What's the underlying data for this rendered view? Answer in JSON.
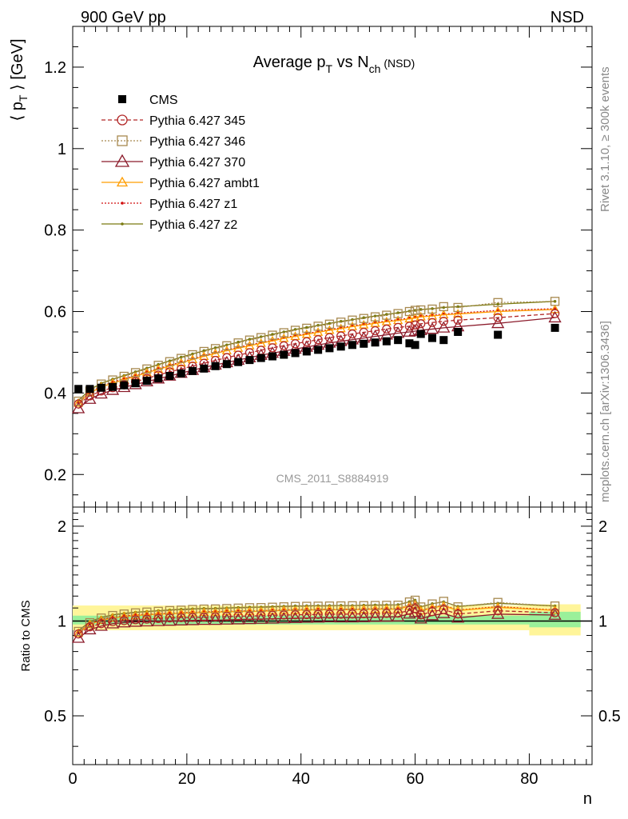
{
  "header": {
    "left": "900 GeV pp",
    "right": "NSD"
  },
  "side_labels": {
    "rivet": "Rivet 3.1.10, ≥ 300k events",
    "mcplots": "mcplots.cern.ch [arXiv:1306.3436]"
  },
  "title": {
    "main": "Average p",
    "sub1": "T",
    "mid": " vs N",
    "sub2": "ch",
    "tail": " (NSD)"
  },
  "watermark": "CMS_2011_S8884919",
  "ylabel": {
    "open": "⟨ p",
    "sub": "T",
    "close": " ⟩ [GeV]"
  },
  "ratio_ylabel": "Ratio to CMS",
  "xlabel": "n",
  "colors": {
    "cms": "#000000",
    "p345": "#b22727",
    "p346": "#a7894f",
    "p370": "#8b1a2a",
    "ambt1": "#ff9d00",
    "z1": "#d21010",
    "z2": "#7a7a10",
    "band_inner": "#9af09a",
    "band_outer": "#fff59a"
  },
  "chart_data": [
    {
      "type": "scatter",
      "panel": "main",
      "xlim": [
        0,
        91
      ],
      "ylim": [
        0.12,
        1.3
      ],
      "yticks": [
        0.2,
        0.4,
        0.6,
        0.8,
        1,
        1.2
      ],
      "ytick_labels": [
        "0.2",
        "0.4",
        "0.6",
        "0.8",
        "1",
        "1.2"
      ],
      "series": [
        {
          "name": "CMS",
          "key": "cms",
          "style": "cms",
          "x": [
            1,
            3,
            5,
            7,
            9,
            11,
            13,
            15,
            17,
            19,
            21,
            23,
            25,
            27,
            29,
            31,
            33,
            35,
            37,
            39,
            41,
            43,
            45,
            47,
            49,
            51,
            53,
            55,
            57,
            59,
            60,
            61,
            63,
            65,
            67.5,
            74.5,
            84.5
          ],
          "y": [
            0.41,
            0.41,
            0.413,
            0.415,
            0.419,
            0.424,
            0.43,
            0.436,
            0.442,
            0.448,
            0.454,
            0.46,
            0.466,
            0.471,
            0.476,
            0.481,
            0.486,
            0.49,
            0.494,
            0.498,
            0.502,
            0.506,
            0.51,
            0.514,
            0.518,
            0.521,
            0.524,
            0.527,
            0.53,
            0.522,
            0.518,
            0.545,
            0.535,
            0.53,
            0.55,
            0.543,
            0.56
          ]
        },
        {
          "name": "Pythia 6.427 345",
          "key": "p345",
          "style": "circle-dash",
          "x": [
            1,
            3,
            5,
            7,
            9,
            11,
            13,
            15,
            17,
            19,
            21,
            23,
            25,
            27,
            29,
            31,
            33,
            35,
            37,
            39,
            41,
            43,
            45,
            47,
            49,
            51,
            53,
            55,
            57,
            59,
            60,
            61,
            63,
            65,
            67.5,
            74.5,
            84.5
          ],
          "y": [
            0.373,
            0.393,
            0.405,
            0.413,
            0.42,
            0.428,
            0.436,
            0.444,
            0.452,
            0.459,
            0.466,
            0.473,
            0.48,
            0.487,
            0.493,
            0.499,
            0.505,
            0.511,
            0.516,
            0.521,
            0.526,
            0.531,
            0.536,
            0.54,
            0.545,
            0.549,
            0.553,
            0.557,
            0.561,
            0.564,
            0.567,
            0.57,
            0.573,
            0.576,
            0.579,
            0.585,
            0.595
          ]
        },
        {
          "name": "Pythia 6.427 346",
          "key": "p346",
          "style": "square-dot",
          "x": [
            1,
            3,
            5,
            7,
            9,
            11,
            13,
            15,
            17,
            19,
            21,
            23,
            25,
            27,
            29,
            31,
            33,
            35,
            37,
            39,
            41,
            43,
            45,
            47,
            49,
            51,
            53,
            55,
            57,
            59,
            60,
            61,
            63,
            65,
            67.5,
            74.5,
            84.5
          ],
          "y": [
            0.38,
            0.405,
            0.422,
            0.432,
            0.441,
            0.45,
            0.459,
            0.468,
            0.477,
            0.485,
            0.494,
            0.502,
            0.509,
            0.516,
            0.523,
            0.53,
            0.536,
            0.542,
            0.548,
            0.554,
            0.559,
            0.564,
            0.569,
            0.574,
            0.579,
            0.583,
            0.587,
            0.591,
            0.595,
            0.6,
            0.603,
            0.604,
            0.606,
            0.612,
            0.61,
            0.622,
            0.625
          ]
        },
        {
          "name": "Pythia 6.427 370",
          "key": "p370",
          "style": "triangle-solid",
          "x": [
            1,
            3,
            5,
            7,
            9,
            11,
            13,
            15,
            17,
            19,
            21,
            23,
            25,
            27,
            29,
            31,
            33,
            35,
            37,
            39,
            41,
            43,
            45,
            47,
            49,
            51,
            53,
            55,
            57,
            59,
            60,
            61,
            63,
            65,
            67.5,
            74.5,
            84.5
          ],
          "y": [
            0.362,
            0.385,
            0.398,
            0.407,
            0.414,
            0.421,
            0.428,
            0.435,
            0.442,
            0.449,
            0.456,
            0.463,
            0.469,
            0.475,
            0.481,
            0.487,
            0.493,
            0.498,
            0.503,
            0.508,
            0.513,
            0.518,
            0.523,
            0.527,
            0.531,
            0.535,
            0.539,
            0.543,
            0.547,
            0.55,
            0.552,
            0.554,
            0.557,
            0.56,
            0.563,
            0.571,
            0.585
          ]
        },
        {
          "name": "Pythia 6.427 ambt1",
          "key": "ambt1",
          "style": "triangle-small",
          "x": [
            1,
            3,
            5,
            7,
            9,
            11,
            13,
            15,
            17,
            19,
            21,
            23,
            25,
            27,
            29,
            31,
            33,
            35,
            37,
            39,
            41,
            43,
            45,
            47,
            49,
            51,
            53,
            55,
            57,
            59,
            60,
            61,
            63,
            65,
            67.5,
            74.5,
            84.5
          ],
          "y": [
            0.375,
            0.4,
            0.415,
            0.424,
            0.433,
            0.441,
            0.45,
            0.458,
            0.466,
            0.474,
            0.482,
            0.49,
            0.497,
            0.504,
            0.51,
            0.516,
            0.522,
            0.528,
            0.534,
            0.539,
            0.544,
            0.549,
            0.554,
            0.558,
            0.563,
            0.567,
            0.571,
            0.575,
            0.578,
            0.582,
            0.584,
            0.587,
            0.589,
            0.592,
            0.594,
            0.6,
            0.605
          ]
        },
        {
          "name": "Pythia 6.427 z1",
          "key": "z1",
          "style": "dot-dotted",
          "x": [
            1,
            3,
            5,
            7,
            9,
            11,
            13,
            15,
            17,
            19,
            21,
            23,
            25,
            27,
            29,
            31,
            33,
            35,
            37,
            39,
            41,
            43,
            45,
            47,
            49,
            51,
            53,
            55,
            57,
            59,
            60,
            61,
            63,
            65,
            67.5,
            74.5,
            84.5
          ],
          "y": [
            0.376,
            0.402,
            0.417,
            0.427,
            0.435,
            0.443,
            0.452,
            0.46,
            0.468,
            0.476,
            0.484,
            0.492,
            0.499,
            0.506,
            0.512,
            0.518,
            0.524,
            0.53,
            0.536,
            0.541,
            0.546,
            0.551,
            0.556,
            0.56,
            0.565,
            0.569,
            0.573,
            0.577,
            0.58,
            0.584,
            0.586,
            0.589,
            0.591,
            0.594,
            0.596,
            0.603,
            0.607
          ]
        },
        {
          "name": "Pythia 6.427 z2",
          "key": "z2",
          "style": "dot-solid",
          "x": [
            1,
            3,
            5,
            7,
            9,
            11,
            13,
            15,
            17,
            19,
            21,
            23,
            25,
            27,
            29,
            31,
            33,
            35,
            37,
            39,
            41,
            43,
            45,
            47,
            49,
            51,
            53,
            55,
            57,
            59,
            60,
            61,
            63,
            65,
            67.5,
            74.5,
            84.5
          ],
          "y": [
            0.382,
            0.408,
            0.424,
            0.434,
            0.443,
            0.452,
            0.461,
            0.47,
            0.479,
            0.488,
            0.496,
            0.504,
            0.511,
            0.518,
            0.525,
            0.532,
            0.538,
            0.544,
            0.55,
            0.556,
            0.561,
            0.566,
            0.571,
            0.576,
            0.58,
            0.585,
            0.589,
            0.593,
            0.597,
            0.601,
            0.603,
            0.605,
            0.607,
            0.61,
            0.612,
            0.618,
            0.625
          ]
        }
      ]
    },
    {
      "type": "line",
      "panel": "ratio",
      "xlim": [
        0,
        91
      ],
      "ylim": [
        0.35,
        2.3
      ],
      "log_scale": true,
      "xticks": [
        0,
        20,
        40,
        60,
        80
      ],
      "xtick_labels": [
        "0",
        "20",
        "40",
        "60",
        "80"
      ],
      "yticks": [
        0.5,
        1,
        2
      ],
      "ytick_labels": [
        "0.5",
        "1",
        "2"
      ],
      "reference_line": 1
    }
  ]
}
